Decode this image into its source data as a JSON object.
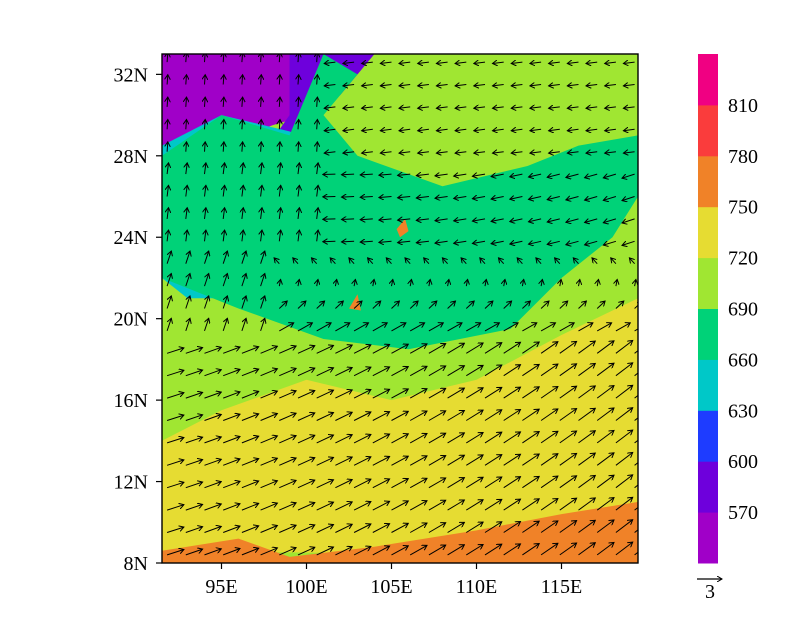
{
  "chart_data": {
    "type": "heatmap",
    "title": "",
    "xlabel": "",
    "ylabel": "",
    "xlim_deg_e": [
      91.5,
      119.5
    ],
    "ylim_deg_n": [
      8,
      33
    ],
    "x_ticks": [
      95,
      100,
      105,
      110,
      115
    ],
    "x_tick_labels": [
      "95E",
      "100E",
      "105E",
      "110E",
      "115E"
    ],
    "y_ticks": [
      8,
      12,
      16,
      20,
      24,
      28,
      32
    ],
    "y_tick_labels": [
      "8N",
      "12N",
      "16N",
      "20N",
      "24N",
      "28N",
      "32N"
    ],
    "colorbar": {
      "levels": [
        570,
        600,
        630,
        660,
        690,
        720,
        750,
        780,
        810
      ],
      "level_labels": [
        "570",
        "600",
        "630",
        "660",
        "690",
        "720",
        "750",
        "780",
        "810"
      ],
      "colors": [
        "#a000c8",
        "#6e00dc",
        "#1e3cff",
        "#00c8c8",
        "#00d278",
        "#a0e632",
        "#e6dc32",
        "#f08228",
        "#fa3c3c",
        "#f00082"
      ],
      "placement": "right"
    },
    "field_regions": [
      {
        "level_bin": 0,
        "description_points": [
          [
            91.5,
            33
          ],
          [
            101,
            33
          ],
          [
            100,
            30
          ],
          [
            98,
            29.5
          ],
          [
            93,
            28
          ],
          [
            91.5,
            28
          ]
        ]
      },
      {
        "level_bin": 1,
        "description_points": [
          [
            99,
            33
          ],
          [
            104,
            33
          ],
          [
            102,
            31
          ],
          [
            99.5,
            29
          ],
          [
            98,
            28.8
          ],
          [
            99,
            30
          ]
        ]
      },
      {
        "level_bin": 3,
        "description_points": [
          [
            91.5,
            28.5
          ],
          [
            95,
            30
          ],
          [
            99,
            29.2
          ],
          [
            102,
            28
          ],
          [
            101,
            25
          ],
          [
            99,
            22
          ],
          [
            96,
            21
          ],
          [
            93,
            21
          ],
          [
            91.5,
            22
          ]
        ]
      },
      {
        "level_bin": 4,
        "description_points": [
          [
            91.5,
            22
          ],
          [
            96,
            20.5
          ],
          [
            101,
            19
          ],
          [
            106,
            18.5
          ],
          [
            112,
            19.5
          ],
          [
            115,
            22
          ],
          [
            118,
            24
          ],
          [
            119.5,
            26
          ],
          [
            119.5,
            29
          ],
          [
            116,
            28.5
          ],
          [
            113,
            27.5
          ],
          [
            108,
            26.5
          ],
          [
            103,
            28
          ],
          [
            101,
            30
          ],
          [
            103,
            32
          ],
          [
            101,
            33
          ],
          [
            99,
            29
          ],
          [
            95,
            30
          ],
          [
            91.5,
            28
          ]
        ]
      },
      {
        "level_bin": 6,
        "description_points": [
          [
            91.5,
            14
          ],
          [
            95,
            15.5
          ],
          [
            100,
            17
          ],
          [
            105,
            16
          ],
          [
            110,
            17
          ],
          [
            115,
            19.2
          ],
          [
            119.5,
            21
          ],
          [
            119.5,
            11
          ],
          [
            114,
            9.5
          ],
          [
            108,
            9
          ],
          [
            101,
            8.5
          ],
          [
            91.5,
            8.6
          ]
        ]
      },
      {
        "level_bin": 7,
        "description_points": [
          [
            91.5,
            8
          ],
          [
            91.5,
            8.6
          ],
          [
            96,
            9.2
          ],
          [
            99,
            8.3
          ],
          [
            104,
            8.8
          ],
          [
            110,
            9.6
          ],
          [
            115,
            10.4
          ],
          [
            119.5,
            11
          ],
          [
            119.5,
            8
          ]
        ]
      },
      {
        "level_bin": 7,
        "description_points": [
          [
            105.3,
            24.4
          ],
          [
            105.8,
            24.9
          ],
          [
            106,
            24.3
          ],
          [
            105.5,
            24
          ]
        ]
      },
      {
        "level_bin": 7,
        "description_points": [
          [
            102.5,
            20.5
          ],
          [
            103,
            21.2
          ],
          [
            103.2,
            20.4
          ]
        ]
      }
    ],
    "wind_vectors": {
      "reference_vector_label": "3",
      "sampling_deg": 1.1,
      "description": "westerly/southwesterly flow south of 20N, easterly/northeasterly flow over south China, northerly/northeasterly flow on the Tibetan plateau"
    }
  }
}
